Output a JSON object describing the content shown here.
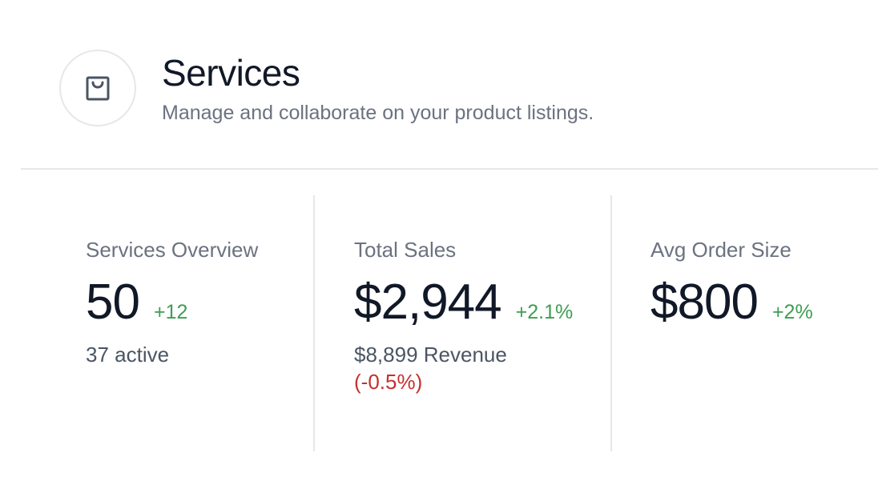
{
  "header": {
    "icon": "shopping-bag-icon",
    "title": "Services",
    "subtitle": "Manage and collaborate on your product listings."
  },
  "stats": [
    {
      "label": "Services Overview",
      "value": "50",
      "delta": "+12",
      "meta": "37 active"
    },
    {
      "label": "Total Sales",
      "value": "$2,944",
      "delta": "+2.1%",
      "meta": "$8,899 Revenue",
      "meta_change": "(-0.5%)"
    },
    {
      "label": "Avg Order Size",
      "value": "$800",
      "delta": "+2%"
    }
  ],
  "colors": {
    "positive": "#3f9d52",
    "negative": "#c53030",
    "muted": "#6b7280",
    "text": "#111827",
    "border": "#e5e7eb"
  }
}
